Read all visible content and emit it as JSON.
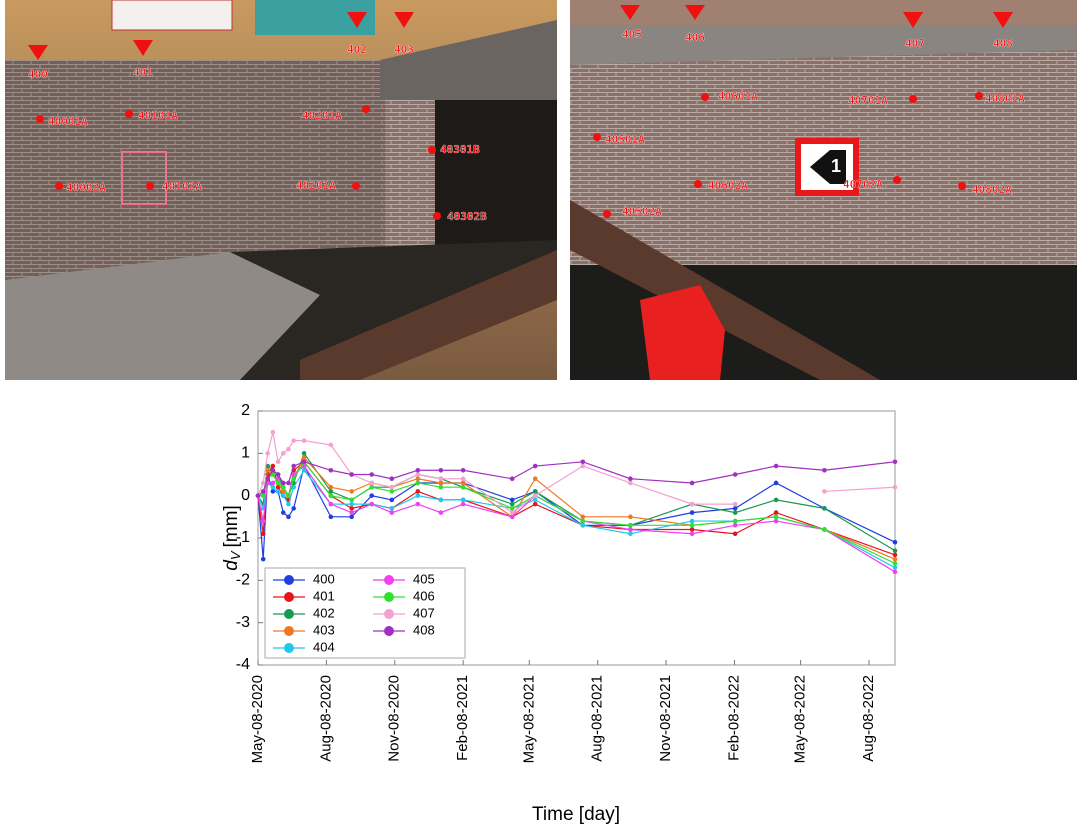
{
  "photos": [
    {
      "pillars": [
        "400",
        "401",
        "402",
        "403"
      ],
      "points": [
        "40001A",
        "40101A",
        "40201A",
        "40301B",
        "40002A",
        "40102A",
        "40202A",
        "40302B"
      ]
    },
    {
      "pillars": [
        "405",
        "406",
        "407",
        "408"
      ],
      "points": [
        "40601A",
        "40701A",
        "40801A",
        "40501A",
        "40602A",
        "40702A",
        "40802A",
        "40502A"
      ],
      "sign": "1"
    }
  ],
  "chart_data": {
    "type": "line",
    "ylabel": {
      "symbol": "d",
      "subscript": "V",
      "unit": "[mm]"
    },
    "xlabel": "Time [day]",
    "x": [
      "2020-05-08",
      "2020-05-15",
      "2020-05-21",
      "2020-05-28",
      "2020-06-04",
      "2020-06-11",
      "2020-06-18",
      "2020-06-25",
      "2020-07-09",
      "2020-08-14",
      "2020-09-11",
      "2020-10-08",
      "2020-11-04",
      "2020-12-09",
      "2021-01-09",
      "2021-02-08",
      "2021-04-15",
      "2021-05-16",
      "2021-07-19",
      "2021-09-21",
      "2021-12-13",
      "2022-02-09",
      "2022-04-05",
      "2022-06-09",
      "2022-09-12"
    ],
    "xlim": [
      "2020-05-08",
      "2022-09-12"
    ],
    "xticks": [
      {
        "value": "2020-05-08",
        "label": "May-08-2020"
      },
      {
        "value": "2020-08-08",
        "label": "Aug-08-2020"
      },
      {
        "value": "2020-11-08",
        "label": "Nov-08-2020"
      },
      {
        "value": "2021-02-08",
        "label": "Feb-08-2021"
      },
      {
        "value": "2021-05-08",
        "label": "May-08-2021"
      },
      {
        "value": "2021-08-08",
        "label": "Aug-08-2021"
      },
      {
        "value": "2021-11-08",
        "label": "Nov-08-2021"
      },
      {
        "value": "2022-02-08",
        "label": "Feb-08-2022"
      },
      {
        "value": "2022-05-08",
        "label": "May-08-2022"
      },
      {
        "value": "2022-08-08",
        "label": "Aug-08-2022"
      }
    ],
    "ylim": [
      -4,
      2
    ],
    "yticks": [
      2,
      1,
      0,
      -1,
      -2,
      -3,
      -4
    ],
    "grid": false,
    "legend": "lower left",
    "series": [
      {
        "name": "400",
        "color": "#1f3fe0",
        "values": [
          0,
          -1.5,
          0.5,
          0.1,
          0.1,
          -0.4,
          -0.5,
          -0.3,
          0.7,
          -0.5,
          -0.5,
          0,
          -0.1,
          0.3,
          0.3,
          0.3,
          -0.1,
          0.1,
          -0.7,
          -0.7,
          -0.4,
          -0.3,
          0.3,
          -0.3,
          -1.1
        ]
      },
      {
        "name": "401",
        "color": "#e8141c",
        "values": [
          0,
          -0.9,
          0.5,
          0.7,
          0.2,
          0,
          -0.1,
          0.6,
          0.8,
          0,
          -0.3,
          -0.2,
          -0.3,
          0.1,
          -0.1,
          -0.1,
          -0.5,
          -0.2,
          -0.7,
          -0.8,
          -0.8,
          -0.9,
          -0.4,
          -0.8,
          -1.4
        ]
      },
      {
        "name": "402",
        "color": "#1a9a50",
        "values": [
          0,
          -0.2,
          0.7,
          0.6,
          0.5,
          0.2,
          0,
          0.3,
          1.0,
          0.1,
          -0.1,
          0.2,
          0.2,
          0.5,
          0.4,
          0.2,
          -0.2,
          0.1,
          -0.6,
          -0.7,
          -0.2,
          -0.4,
          -0.1,
          -0.3,
          -1.3
        ]
      },
      {
        "name": "403",
        "color": "#f07820",
        "values": [
          0,
          0,
          0.6,
          0.5,
          0.3,
          0.1,
          0,
          0.4,
          0.9,
          0.2,
          0.1,
          0.3,
          0.2,
          0.4,
          0.3,
          0.3,
          -0.5,
          0.4,
          -0.5,
          -0.5,
          -0.7,
          -0.6,
          -0.5,
          -0.8,
          -1.5
        ]
      },
      {
        "name": "404",
        "color": "#20c8f0",
        "values": [
          0,
          -0.3,
          0.3,
          0.2,
          0.1,
          0,
          -0.2,
          0.2,
          0.6,
          -0.2,
          -0.2,
          -0.2,
          -0.3,
          0,
          -0.1,
          -0.1,
          -0.3,
          -0.1,
          -0.7,
          -0.9,
          -0.6,
          -0.6,
          -0.5,
          -0.8,
          -1.7
        ]
      },
      {
        "name": "405",
        "color": "#f040f0",
        "values": [
          0,
          -0.6,
          0.3,
          0.3,
          0.4,
          0.2,
          0,
          0.5,
          0.7,
          -0.2,
          -0.4,
          -0.2,
          -0.4,
          -0.2,
          -0.4,
          -0.2,
          -0.5,
          0,
          -0.6,
          -0.8,
          -0.9,
          -0.7,
          -0.6,
          -0.8,
          -1.8
        ]
      },
      {
        "name": "406",
        "color": "#30e030",
        "values": [
          0,
          0,
          0.4,
          0.5,
          0.3,
          0.2,
          0,
          0.4,
          0.8,
          0,
          -0.1,
          0.2,
          0.1,
          0.3,
          0.2,
          0.2,
          -0.3,
          0,
          -0.6,
          -0.7,
          -0.7,
          -0.6,
          -0.5,
          -0.8,
          -1.6
        ]
      },
      {
        "name": "407",
        "color": "#f4a0d0",
        "values": [
          0,
          0.3,
          1.0,
          1.5,
          0.8,
          1.0,
          1.1,
          1.3,
          1.3,
          1.2,
          0.5,
          0.3,
          0.2,
          0.5,
          0.4,
          0.4,
          -0.4,
          0,
          0.7,
          0.3,
          -0.2,
          -0.2,
          null,
          0.1,
          0.2
        ]
      },
      {
        "name": "408",
        "color": "#a030c0",
        "values": [
          0,
          0.1,
          0.4,
          0.6,
          0.5,
          0.3,
          0.3,
          0.7,
          0.8,
          0.6,
          0.5,
          0.5,
          0.4,
          0.6,
          0.6,
          0.6,
          0.4,
          0.7,
          0.8,
          0.4,
          0.3,
          0.5,
          0.7,
          0.6,
          0.8
        ]
      }
    ]
  }
}
